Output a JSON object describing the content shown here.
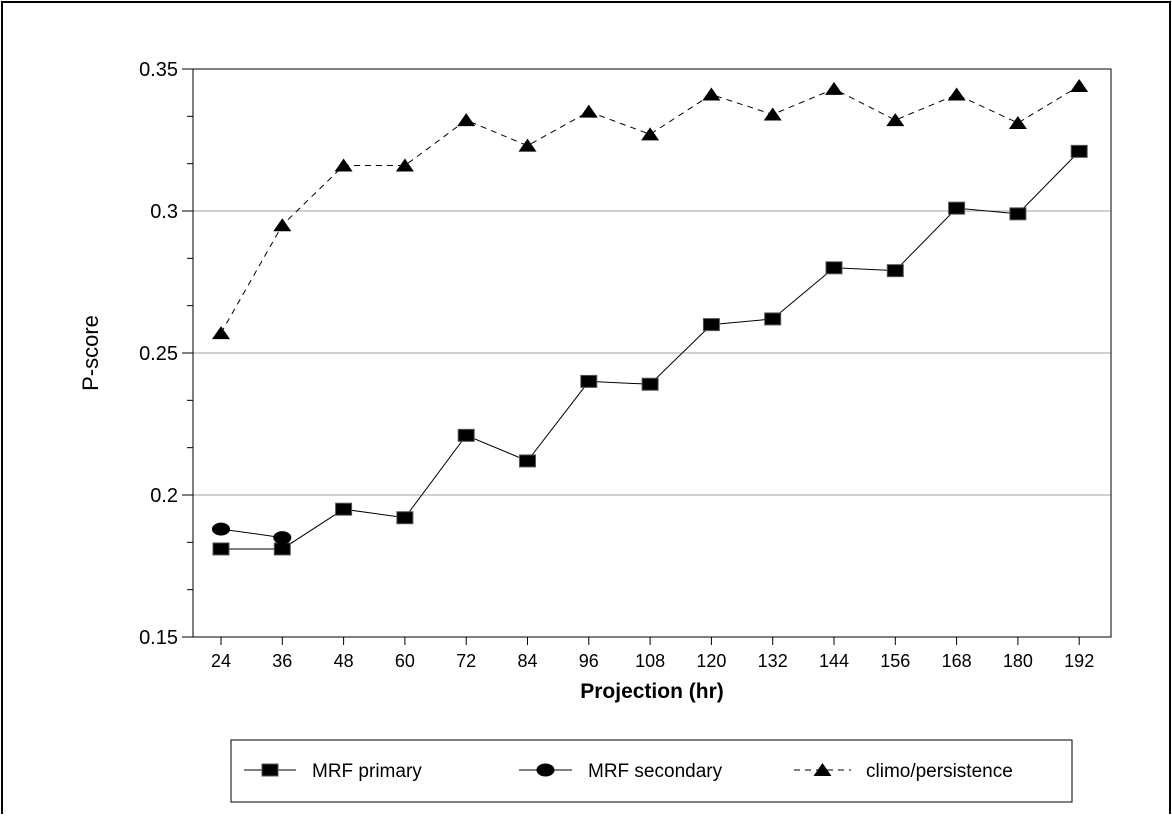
{
  "chart_data": {
    "type": "line",
    "title": "",
    "xlabel": "Projection (hr)",
    "ylabel": "P-score",
    "x": [
      24,
      36,
      48,
      60,
      72,
      84,
      96,
      108,
      120,
      132,
      144,
      156,
      168,
      180,
      192
    ],
    "ylim": [
      0.15,
      0.35
    ],
    "yticks": [
      0.15,
      0.2,
      0.25,
      0.3,
      0.35
    ],
    "ytick_labels": [
      "0.15",
      "0.2",
      "0.25",
      "0.3",
      "0.35"
    ],
    "grid": "horizontal",
    "legend_position": "bottom",
    "series": [
      {
        "name": "MRF primary",
        "marker": "square",
        "line": "solid",
        "color": "#000000",
        "values": [
          0.181,
          0.181,
          0.195,
          0.192,
          0.221,
          0.212,
          0.24,
          0.239,
          0.26,
          0.262,
          0.28,
          0.279,
          0.301,
          0.299,
          0.321
        ]
      },
      {
        "name": "MRF secondary",
        "marker": "circle",
        "line": "solid",
        "color": "#000000",
        "values": [
          0.188,
          0.185,
          null,
          null,
          null,
          null,
          null,
          null,
          null,
          null,
          null,
          null,
          null,
          null,
          null
        ]
      },
      {
        "name": "climo/persistence",
        "marker": "triangle",
        "line": "dashed",
        "color": "#000000",
        "values": [
          0.257,
          0.295,
          0.316,
          0.316,
          0.332,
          0.323,
          0.335,
          0.327,
          0.341,
          0.334,
          0.343,
          0.332,
          0.341,
          0.331,
          0.344
        ]
      }
    ]
  }
}
